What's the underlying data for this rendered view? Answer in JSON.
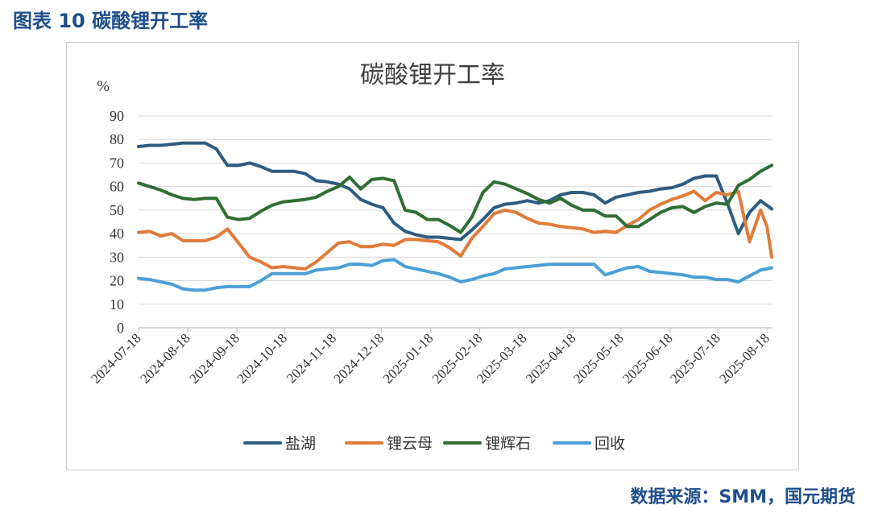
{
  "figure": {
    "title": "图表 10 碳酸锂开工率",
    "source": "数据来源：SMM，国元期货"
  },
  "chart_data": {
    "type": "line",
    "title": "碳酸锂开工率",
    "ylabel": "%",
    "ylim": [
      0,
      90
    ],
    "yticks": [
      0,
      10,
      20,
      30,
      40,
      50,
      60,
      70,
      80,
      90
    ],
    "x_range": [
      "2024-07-18",
      "2025-08-21"
    ],
    "xticks": [
      "2024-07-18",
      "2024-08-18",
      "2024-09-18",
      "2024-10-18",
      "2024-11-18",
      "2024-12-18",
      "2025-01-18",
      "2025-02-18",
      "2025-03-18",
      "2025-04-18",
      "2025-05-18",
      "2025-06-18",
      "2025-07-18",
      "2025-08-18"
    ],
    "grid": true,
    "legend_position": "bottom",
    "series": [
      {
        "name": "盐湖",
        "color": "#2e5b80",
        "points": [
          [
            "2024-07-18",
            77
          ],
          [
            "2024-07-25",
            77.5
          ],
          [
            "2024-08-01",
            77.5
          ],
          [
            "2024-08-08",
            78
          ],
          [
            "2024-08-15",
            78.5
          ],
          [
            "2024-08-22",
            78.5
          ],
          [
            "2024-08-29",
            78.5
          ],
          [
            "2024-09-05",
            76
          ],
          [
            "2024-09-12",
            69
          ],
          [
            "2024-09-19",
            69
          ],
          [
            "2024-09-26",
            70
          ],
          [
            "2024-10-03",
            68.5
          ],
          [
            "2024-10-10",
            66.5
          ],
          [
            "2024-10-17",
            66.5
          ],
          [
            "2024-10-24",
            66.5
          ],
          [
            "2024-10-31",
            65.5
          ],
          [
            "2024-11-07",
            62.5
          ],
          [
            "2024-11-14",
            62
          ],
          [
            "2024-11-21",
            61
          ],
          [
            "2024-11-28",
            59
          ],
          [
            "2024-12-05",
            54.5
          ],
          [
            "2024-12-12",
            52.5
          ],
          [
            "2024-12-19",
            51
          ],
          [
            "2024-12-26",
            44.5
          ],
          [
            "2025-01-02",
            41
          ],
          [
            "2025-01-09",
            39.5
          ],
          [
            "2025-01-16",
            38.5
          ],
          [
            "2025-01-23",
            38.5
          ],
          [
            "2025-01-30",
            38
          ],
          [
            "2025-02-06",
            37.5
          ],
          [
            "2025-02-13",
            41.5
          ],
          [
            "2025-02-20",
            46
          ],
          [
            "2025-02-27",
            51
          ],
          [
            "2025-03-06",
            52.5
          ],
          [
            "2025-03-13",
            53
          ],
          [
            "2025-03-20",
            54
          ],
          [
            "2025-03-27",
            53
          ],
          [
            "2025-04-03",
            54
          ],
          [
            "2025-04-10",
            56.5
          ],
          [
            "2025-04-17",
            57.5
          ],
          [
            "2025-04-24",
            57.5
          ],
          [
            "2025-05-01",
            56.5
          ],
          [
            "2025-05-08",
            53
          ],
          [
            "2025-05-15",
            55.5
          ],
          [
            "2025-05-22",
            56.5
          ],
          [
            "2025-05-29",
            57.5
          ],
          [
            "2025-06-05",
            58
          ],
          [
            "2025-06-12",
            59
          ],
          [
            "2025-06-19",
            59.5
          ],
          [
            "2025-06-26",
            61
          ],
          [
            "2025-07-03",
            63.5
          ],
          [
            "2025-07-10",
            64.5
          ],
          [
            "2025-07-17",
            64.5
          ],
          [
            "2025-07-24",
            53
          ],
          [
            "2025-07-31",
            40
          ],
          [
            "2025-08-07",
            49
          ],
          [
            "2025-08-14",
            54
          ],
          [
            "2025-08-21",
            50.5
          ]
        ]
      },
      {
        "name": "锂云母",
        "color": "#e07b39",
        "points": [
          [
            "2024-07-18",
            40.5
          ],
          [
            "2024-07-25",
            41
          ],
          [
            "2024-08-01",
            39
          ],
          [
            "2024-08-08",
            40
          ],
          [
            "2024-08-15",
            37
          ],
          [
            "2024-08-22",
            37
          ],
          [
            "2024-08-29",
            37
          ],
          [
            "2024-09-05",
            38.5
          ],
          [
            "2024-09-12",
            42
          ],
          [
            "2024-09-19",
            36
          ],
          [
            "2024-09-26",
            30
          ],
          [
            "2024-10-03",
            28
          ],
          [
            "2024-10-10",
            25.5
          ],
          [
            "2024-10-17",
            26
          ],
          [
            "2024-10-24",
            25.5
          ],
          [
            "2024-10-31",
            25
          ],
          [
            "2024-11-07",
            28
          ],
          [
            "2024-11-14",
            32
          ],
          [
            "2024-11-21",
            36
          ],
          [
            "2024-11-28",
            36.5
          ],
          [
            "2024-12-05",
            34.5
          ],
          [
            "2024-12-12",
            34.5
          ],
          [
            "2024-12-19",
            35.5
          ],
          [
            "2024-12-26",
            35
          ],
          [
            "2025-01-02",
            37.5
          ],
          [
            "2025-01-09",
            37.5
          ],
          [
            "2025-01-16",
            37
          ],
          [
            "2025-01-23",
            36.5
          ],
          [
            "2025-01-30",
            34
          ],
          [
            "2025-02-06",
            30.5
          ],
          [
            "2025-02-13",
            38
          ],
          [
            "2025-02-20",
            43
          ],
          [
            "2025-02-27",
            48.5
          ],
          [
            "2025-03-06",
            50
          ],
          [
            "2025-03-13",
            49
          ],
          [
            "2025-03-20",
            46.5
          ],
          [
            "2025-03-27",
            44.5
          ],
          [
            "2025-04-03",
            44
          ],
          [
            "2025-04-10",
            43
          ],
          [
            "2025-04-17",
            42.5
          ],
          [
            "2025-04-24",
            42
          ],
          [
            "2025-05-01",
            40.5
          ],
          [
            "2025-05-08",
            41
          ],
          [
            "2025-05-15",
            40.5
          ],
          [
            "2025-05-22",
            43.5
          ],
          [
            "2025-05-29",
            46
          ],
          [
            "2025-06-05",
            50
          ],
          [
            "2025-06-12",
            52.5
          ],
          [
            "2025-06-19",
            54.5
          ],
          [
            "2025-06-26",
            56
          ],
          [
            "2025-07-03",
            58
          ],
          [
            "2025-07-10",
            54
          ],
          [
            "2025-07-17",
            57.5
          ],
          [
            "2025-07-24",
            56.5
          ],
          [
            "2025-07-31",
            58
          ],
          [
            "2025-08-07",
            36.5
          ],
          [
            "2025-08-14",
            50
          ],
          [
            "2025-08-18",
            43
          ],
          [
            "2025-08-21",
            30
          ]
        ]
      },
      {
        "name": "锂辉石",
        "color": "#2f6e33",
        "points": [
          [
            "2024-07-18",
            61.5
          ],
          [
            "2024-07-25",
            60
          ],
          [
            "2024-08-01",
            58.5
          ],
          [
            "2024-08-08",
            56.5
          ],
          [
            "2024-08-15",
            55
          ],
          [
            "2024-08-22",
            54.5
          ],
          [
            "2024-08-29",
            55
          ],
          [
            "2024-09-05",
            55
          ],
          [
            "2024-09-12",
            47
          ],
          [
            "2024-09-19",
            46
          ],
          [
            "2024-09-26",
            46.5
          ],
          [
            "2024-10-03",
            49.5
          ],
          [
            "2024-10-10",
            52
          ],
          [
            "2024-10-17",
            53.5
          ],
          [
            "2024-10-24",
            54
          ],
          [
            "2024-10-31",
            54.5
          ],
          [
            "2024-11-07",
            55.5
          ],
          [
            "2024-11-14",
            58
          ],
          [
            "2024-11-21",
            60
          ],
          [
            "2024-11-28",
            64
          ],
          [
            "2024-12-05",
            59
          ],
          [
            "2024-12-12",
            63
          ],
          [
            "2024-12-19",
            63.5
          ],
          [
            "2024-12-26",
            62.5
          ],
          [
            "2025-01-02",
            50
          ],
          [
            "2025-01-09",
            49
          ],
          [
            "2025-01-16",
            46
          ],
          [
            "2025-01-23",
            46
          ],
          [
            "2025-01-30",
            43.5
          ],
          [
            "2025-02-06",
            40.5
          ],
          [
            "2025-02-13",
            47
          ],
          [
            "2025-02-20",
            57.5
          ],
          [
            "2025-02-27",
            62
          ],
          [
            "2025-03-06",
            61
          ],
          [
            "2025-03-13",
            59
          ],
          [
            "2025-03-20",
            57
          ],
          [
            "2025-03-27",
            54.5
          ],
          [
            "2025-04-03",
            53
          ],
          [
            "2025-04-10",
            55
          ],
          [
            "2025-04-17",
            52
          ],
          [
            "2025-04-24",
            50
          ],
          [
            "2025-05-01",
            50
          ],
          [
            "2025-05-08",
            47.5
          ],
          [
            "2025-05-15",
            47.5
          ],
          [
            "2025-05-22",
            43
          ],
          [
            "2025-05-29",
            43
          ],
          [
            "2025-06-05",
            46
          ],
          [
            "2025-06-12",
            49
          ],
          [
            "2025-06-19",
            51
          ],
          [
            "2025-06-26",
            51.5
          ],
          [
            "2025-07-03",
            49
          ],
          [
            "2025-07-10",
            51.5
          ],
          [
            "2025-07-17",
            53
          ],
          [
            "2025-07-24",
            52.5
          ],
          [
            "2025-07-31",
            60.5
          ],
          [
            "2025-08-07",
            63
          ],
          [
            "2025-08-14",
            66.5
          ],
          [
            "2025-08-21",
            69
          ]
        ]
      },
      {
        "name": "回收",
        "color": "#4b9fd6",
        "points": [
          [
            "2024-07-18",
            21
          ],
          [
            "2024-07-25",
            20.5
          ],
          [
            "2024-08-01",
            19.5
          ],
          [
            "2024-08-08",
            18.5
          ],
          [
            "2024-08-15",
            16.5
          ],
          [
            "2024-08-22",
            16
          ],
          [
            "2024-08-29",
            16
          ],
          [
            "2024-09-05",
            17
          ],
          [
            "2024-09-12",
            17.5
          ],
          [
            "2024-09-19",
            17.5
          ],
          [
            "2024-09-26",
            17.5
          ],
          [
            "2024-10-03",
            20
          ],
          [
            "2024-10-10",
            23
          ],
          [
            "2024-10-17",
            23
          ],
          [
            "2024-10-24",
            23
          ],
          [
            "2024-10-31",
            23
          ],
          [
            "2024-11-07",
            24.5
          ],
          [
            "2024-11-14",
            25
          ],
          [
            "2024-11-21",
            25.5
          ],
          [
            "2024-11-28",
            27
          ],
          [
            "2024-12-05",
            27
          ],
          [
            "2024-12-12",
            26.5
          ],
          [
            "2024-12-19",
            28.5
          ],
          [
            "2024-12-26",
            29
          ],
          [
            "2025-01-02",
            26
          ],
          [
            "2025-01-09",
            25
          ],
          [
            "2025-01-16",
            24
          ],
          [
            "2025-01-23",
            23
          ],
          [
            "2025-01-30",
            21.5
          ],
          [
            "2025-02-06",
            19.5
          ],
          [
            "2025-02-13",
            20.5
          ],
          [
            "2025-02-20",
            22
          ],
          [
            "2025-02-27",
            23
          ],
          [
            "2025-03-06",
            25
          ],
          [
            "2025-03-13",
            25.5
          ],
          [
            "2025-03-20",
            26
          ],
          [
            "2025-03-27",
            26.5
          ],
          [
            "2025-04-03",
            27
          ],
          [
            "2025-04-10",
            27
          ],
          [
            "2025-04-17",
            27
          ],
          [
            "2025-04-24",
            27
          ],
          [
            "2025-05-01",
            27
          ],
          [
            "2025-05-08",
            22.5
          ],
          [
            "2025-05-15",
            24
          ],
          [
            "2025-05-22",
            25.5
          ],
          [
            "2025-05-29",
            26
          ],
          [
            "2025-06-05",
            24
          ],
          [
            "2025-06-12",
            23.5
          ],
          [
            "2025-06-19",
            23
          ],
          [
            "2025-06-26",
            22.5
          ],
          [
            "2025-07-03",
            21.5
          ],
          [
            "2025-07-10",
            21.5
          ],
          [
            "2025-07-17",
            20.5
          ],
          [
            "2025-07-24",
            20.5
          ],
          [
            "2025-07-31",
            19.5
          ],
          [
            "2025-08-07",
            22
          ],
          [
            "2025-08-14",
            24.5
          ],
          [
            "2025-08-21",
            25.5
          ]
        ]
      }
    ]
  }
}
